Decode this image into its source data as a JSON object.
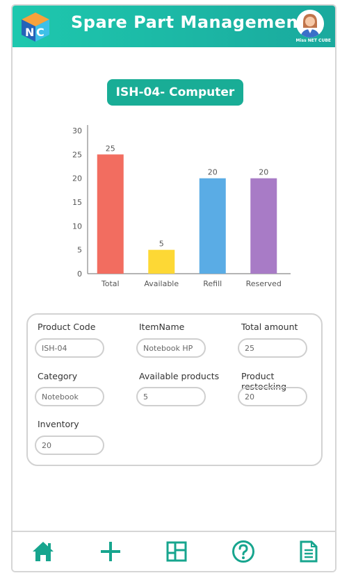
{
  "app": {
    "title": "Spare Part Management",
    "user_name": "Miss NET CUBE"
  },
  "colors": {
    "header_start": "#1ec8ae",
    "header_end": "#1aa99d",
    "accent": "#19ad96",
    "nav_icon": "#17a58e"
  },
  "chart_data": {
    "type": "bar",
    "title": "ISH-04- Computer",
    "categories": [
      "Total",
      "Available",
      "Refill",
      "Reserved"
    ],
    "values": [
      25,
      5,
      20,
      20
    ],
    "colors": [
      "#f26d60",
      "#fdd835",
      "#5aace5",
      "#a87bc6"
    ],
    "ylim": [
      0,
      30
    ],
    "yticks": [
      0,
      5,
      10,
      15,
      20,
      25,
      30
    ],
    "grid": false
  },
  "form": {
    "product_code": {
      "label": "Product Code",
      "value": "ISH-04"
    },
    "item_name": {
      "label": "ItemName",
      "value": "Notebook HP"
    },
    "total_amount": {
      "label": "Total amount",
      "value": "25"
    },
    "category": {
      "label": "Category",
      "value": "Notebook"
    },
    "available_products": {
      "label": "Available products",
      "value": "5"
    },
    "product_restocking": {
      "label": "Product restocking",
      "value": "20"
    },
    "inventory": {
      "label": "Inventory",
      "value": "20"
    }
  },
  "nav": {
    "items": [
      "home-icon",
      "plus-icon",
      "dashboard-icon",
      "help-icon",
      "document-icon"
    ]
  }
}
